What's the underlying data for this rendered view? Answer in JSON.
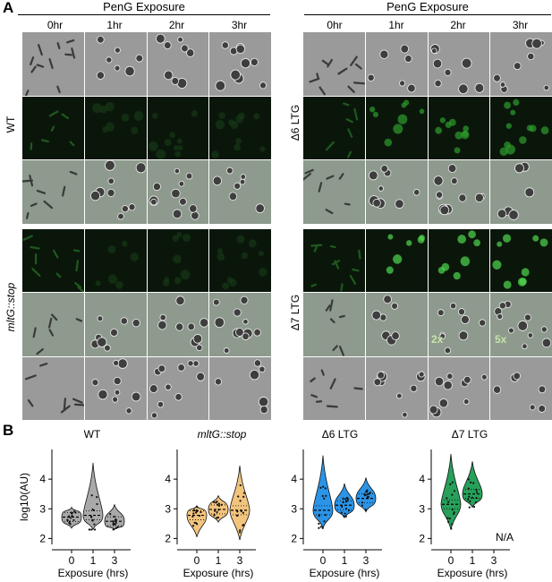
{
  "panelA": {
    "letter": "A",
    "left": {
      "header": "PenG Exposure",
      "timepoints": [
        "0hr",
        "1hr",
        "2hr",
        "3hr"
      ],
      "strains": [
        "WT",
        "mltG::stop"
      ]
    },
    "right": {
      "header": "PenG Exposure",
      "timepoints": [
        "0hr",
        "1hr",
        "2hr",
        "3hr"
      ],
      "strains": [
        "Δ6 LTG",
        "Δ7 LTG"
      ],
      "gain_2hr": "2x",
      "gain_3hr": "5x"
    }
  },
  "panelB": {
    "letter": "B",
    "y_axis_label": "log10(AU)",
    "x_axis_label": "Exposure (hrs)",
    "not_applicable": "N/A"
  },
  "chart_data": [
    {
      "type": "violin",
      "title": "WT",
      "categories": [
        "0",
        "1",
        "3"
      ],
      "medians": [
        2.72,
        2.78,
        2.58
      ],
      "ranges": [
        [
          2.35,
          3.05
        ],
        [
          2.3,
          4.55
        ],
        [
          2.3,
          3.15
        ]
      ],
      "ylim": [
        1.8,
        5.0
      ],
      "yticks": [
        2,
        3,
        4
      ],
      "color": "#a9a9a9"
    },
    {
      "type": "violin",
      "title": "mltG::stop",
      "categories": [
        "0",
        "1",
        "3"
      ],
      "medians": [
        2.78,
        2.98,
        2.95
      ],
      "ranges": [
        [
          2.05,
          3.1
        ],
        [
          2.55,
          3.45
        ],
        [
          1.95,
          4.45
        ]
      ],
      "ylim": [
        1.8,
        5.0
      ],
      "yticks": [
        2,
        3,
        4
      ],
      "color": "#f2c47d"
    },
    {
      "type": "violin",
      "title": "Δ6 LTG",
      "categories": [
        "0",
        "1",
        "3"
      ],
      "medians": [
        2.95,
        3.12,
        3.35
      ],
      "ranges": [
        [
          2.35,
          4.8
        ],
        [
          2.7,
          3.85
        ],
        [
          2.9,
          4.05
        ]
      ],
      "ylim": [
        1.8,
        5.0
      ],
      "yticks": [
        2,
        3,
        4
      ],
      "color": "#2b94e6"
    },
    {
      "type": "violin",
      "title": "Δ7 LTG",
      "categories": [
        "0",
        "1",
        "3"
      ],
      "medians": [
        3.15,
        3.5,
        null
      ],
      "ranges": [
        [
          2.3,
          4.85
        ],
        [
          3.05,
          4.6
        ],
        null
      ],
      "ylim": [
        1.8,
        5.0
      ],
      "yticks": [
        2,
        3,
        4
      ],
      "color": "#27a05a"
    }
  ]
}
